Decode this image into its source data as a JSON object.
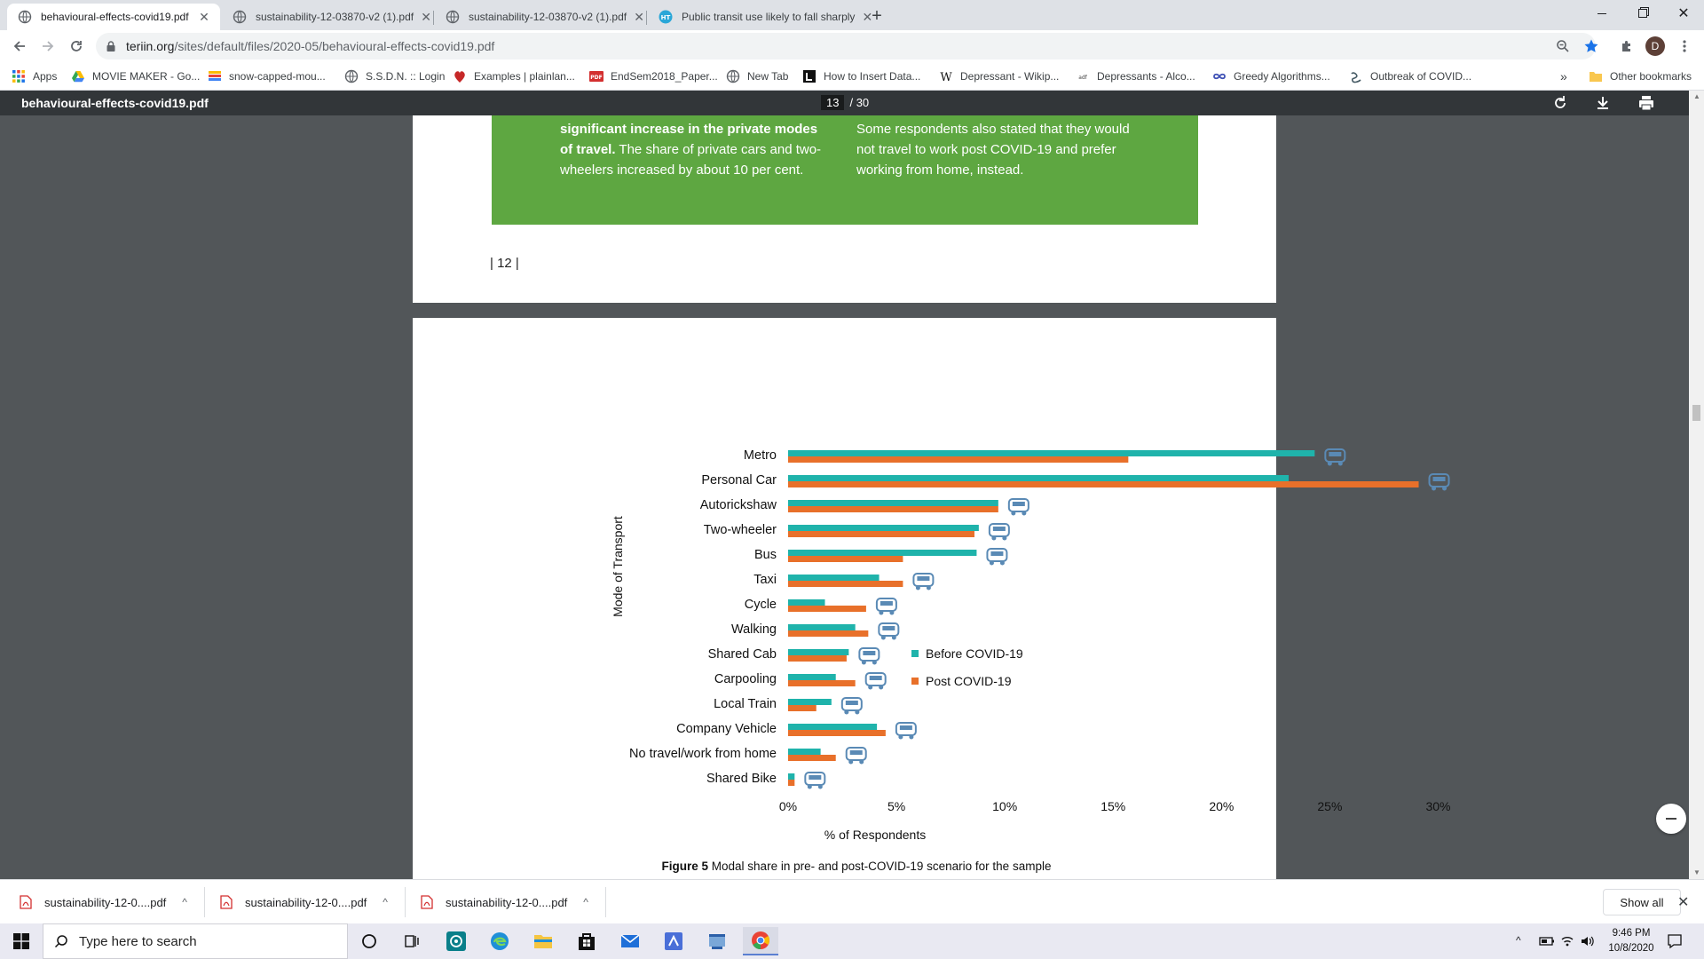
{
  "browser": {
    "tabs": [
      {
        "title": "behavioural-effects-covid19.pdf",
        "active": true,
        "icon": "globe-icon"
      },
      {
        "title": "sustainability-12-03870-v2 (1).pdf",
        "active": false,
        "icon": "globe-icon"
      },
      {
        "title": "sustainability-12-03870-v2 (1).pdf",
        "active": false,
        "icon": "globe-icon"
      },
      {
        "title": "Public transit use likely to fall sharply",
        "active": false,
        "icon": "ht-icon"
      }
    ],
    "new_tab_symbol": "+",
    "url_host": "teriin.org",
    "url_path": "/sites/default/files/2020-05/behavioural-effects-covid19.pdf",
    "profile_initial": "D",
    "colors": {
      "accent": "#1a73e8",
      "chrome_bg": "#dee1e6",
      "profile": "#5d4037"
    }
  },
  "bookmarks": {
    "apps_label": "Apps",
    "items": [
      {
        "label": "MOVIE MAKER - Go...",
        "icon": "drive-icon"
      },
      {
        "label": "snow-capped-mou...",
        "icon": "image-icon"
      },
      {
        "label": "S.S.D.N. :: Login",
        "icon": "globe-icon"
      },
      {
        "label": "Examples | plainlan...",
        "icon": "plainlanguage-icon"
      },
      {
        "label": "EndSem2018_Paper...",
        "icon": "pdf-icon"
      },
      {
        "label": "New Tab",
        "icon": "globe-icon"
      },
      {
        "label": "How to Insert Data...",
        "icon": "l-icon"
      },
      {
        "label": "Depressant - Wikip...",
        "icon": "wikipedia-icon"
      },
      {
        "label": "Depressants - Alco...",
        "icon": "adf-icon"
      },
      {
        "label": "Greedy Algorithms...",
        "icon": "infinity-icon"
      },
      {
        "label": "Outbreak of COVID...",
        "icon": "link-icon"
      }
    ],
    "overflow": "»",
    "other": "Other bookmarks"
  },
  "pdf": {
    "filename": "behavioural-effects-covid19.pdf",
    "current_page": "13",
    "total_pages": "/ 30",
    "green_box": {
      "col1_bold": "significant increase in the private modes of travel.",
      "col1_rest": " The share of private cars and two-wheelers increased by about 10 per cent.",
      "col2": "Some respondents also stated that they would not travel to work post COVID-19 and prefer working from home, instead."
    },
    "page_number_text": "| 12 |",
    "figure_caption_bold": "Figure 5",
    "figure_caption_rest": " Modal share in pre- and post-COVID-19 scenario for the sample",
    "colors": {
      "green": "#5ea741",
      "teal": "#1fb3ab",
      "orange": "#e8702a",
      "icon": "#5a8ab5"
    }
  },
  "chart_data": {
    "type": "bar",
    "orientation": "horizontal",
    "ylabel": "Mode of Transport",
    "xlabel": "% of Respondents",
    "categories": [
      "Metro",
      "Personal Car",
      "Autorickshaw",
      "Two-wheeler",
      "Bus",
      "Taxi",
      "Cycle",
      "Walking",
      "Shared Cab",
      "Carpooling",
      "Local Train",
      "Company Vehicle",
      "No travel/work from home",
      "Shared Bike"
    ],
    "category_icons": [
      "metro-icon",
      "car-icon",
      "autorickshaw-icon",
      "scooter-icon",
      "bus-icon",
      "taxi-icon",
      "bicycle-icon",
      "walking-icon",
      "shared-cab-icon",
      "carpool-icon",
      "train-icon",
      "company-van-icon",
      "home-icon",
      "motorbike-icon"
    ],
    "series": [
      {
        "name": "Before COVID-19",
        "color": "#1fb3ab",
        "values": [
          24.3,
          23.1,
          9.7,
          8.8,
          8.7,
          4.2,
          1.7,
          3.1,
          2.8,
          2.2,
          2.0,
          4.1,
          1.5,
          0.3
        ]
      },
      {
        "name": "Post COVID-19",
        "color": "#e8702a",
        "values": [
          15.7,
          29.1,
          9.7,
          8.6,
          5.3,
          5.3,
          3.6,
          3.7,
          2.7,
          3.1,
          1.3,
          4.5,
          2.2,
          0.3
        ]
      }
    ],
    "xticks": [
      "0%",
      "5%",
      "10%",
      "15%",
      "20%",
      "25%",
      "30%"
    ],
    "xlim": [
      0,
      30
    ],
    "legend": "right",
    "grid": false
  },
  "downloads": {
    "items": [
      {
        "label": "sustainability-12-0....pdf"
      },
      {
        "label": "sustainability-12-0....pdf"
      },
      {
        "label": "sustainability-12-0....pdf"
      }
    ],
    "show_all": "Show all"
  },
  "taskbar": {
    "search_placeholder": "Type here to search",
    "time": "9:46 PM",
    "date": "10/8/2020"
  }
}
